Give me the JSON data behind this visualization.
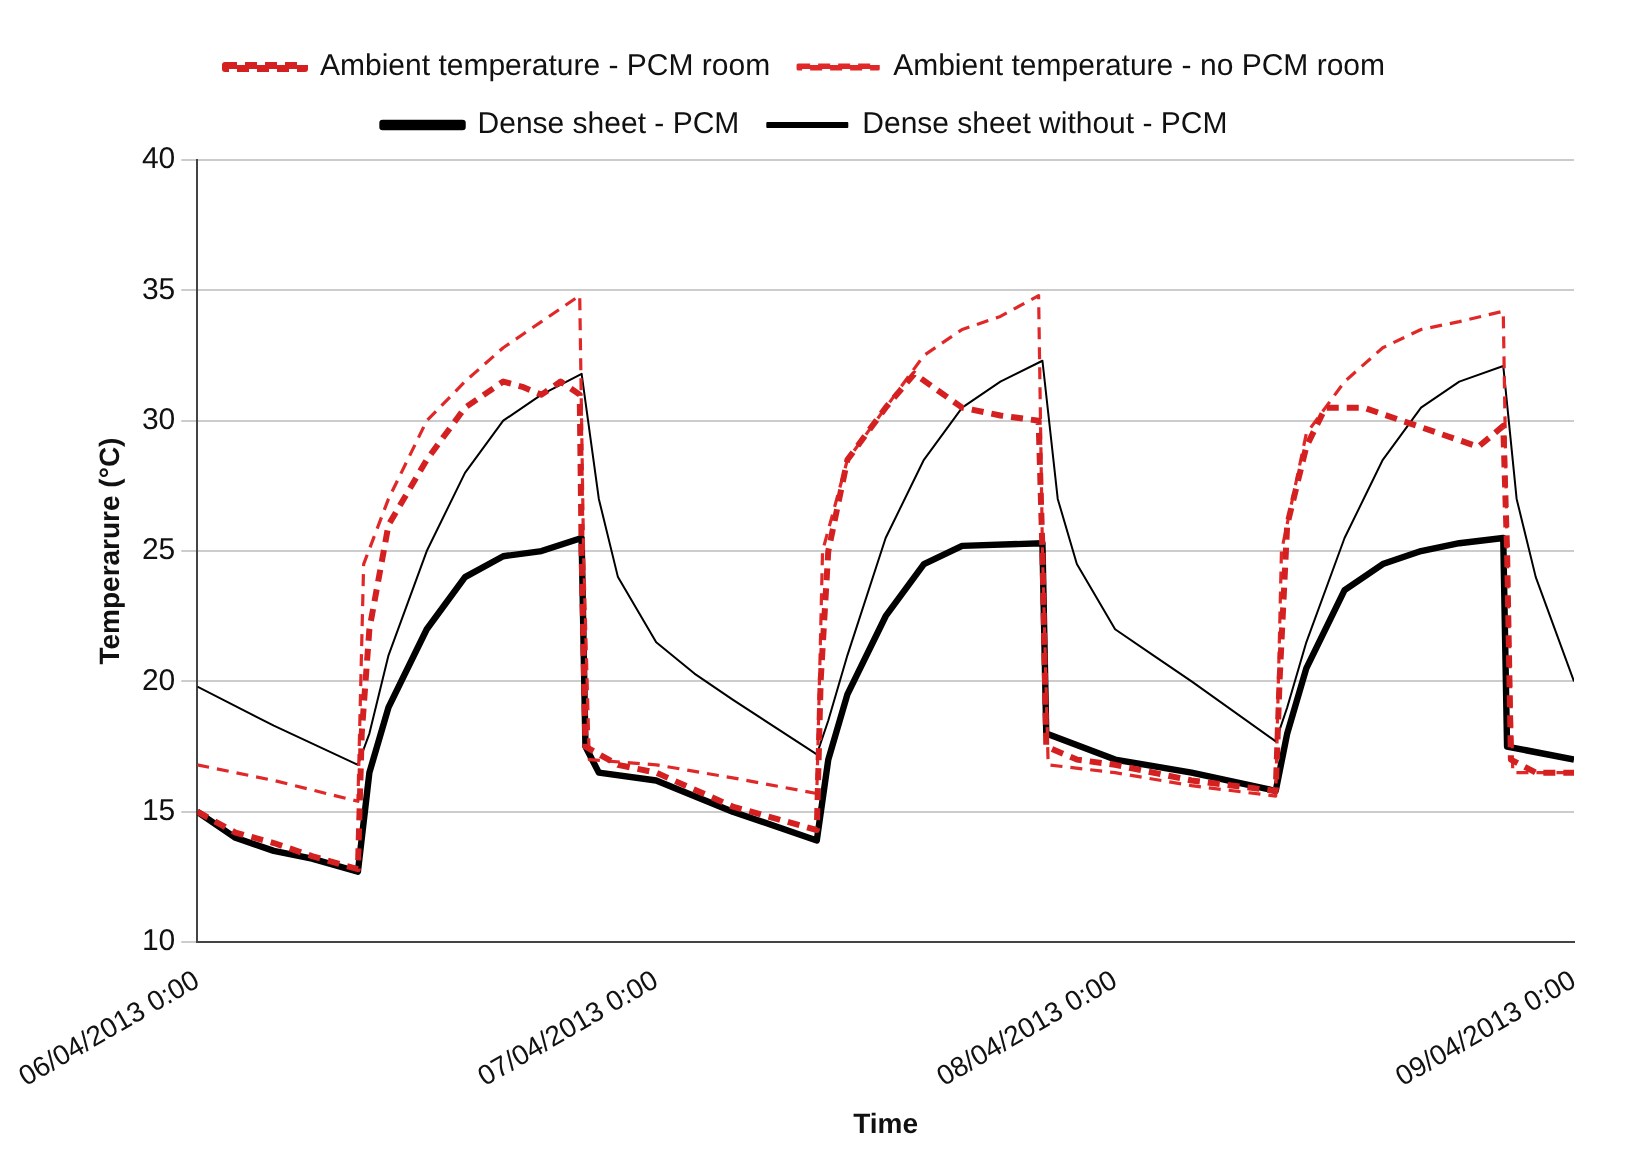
{
  "chart_data": {
    "type": "line",
    "xlabel": "Time",
    "ylabel": "Temperarure (°C)",
    "xlim": [
      "2013-04-06T00:00",
      "2013-04-09T00:00"
    ],
    "xticks": [
      {
        "value": "2013-04-06T00:00",
        "label": "06/04/2013 0:00"
      },
      {
        "value": "2013-04-07T00:00",
        "label": "07/04/2013 0:00"
      },
      {
        "value": "2013-04-08T00:00",
        "label": "08/04/2013 0:00"
      },
      {
        "value": "2013-04-09T00:00",
        "label": "09/04/2013 0:00"
      }
    ],
    "ylim": [
      10,
      40
    ],
    "yticks": [
      10,
      15,
      20,
      25,
      30,
      35,
      40
    ],
    "grid": "y",
    "legend": "top",
    "marker": "none",
    "series": [
      {
        "name": "Ambient temperature - PCM room",
        "color": "#d42020",
        "line_style": "dashed",
        "x": [
          "2013-04-06T00:00",
          "2013-04-06T02:00",
          "2013-04-06T04:00",
          "2013-04-06T06:00",
          "2013-04-06T08:24",
          "2013-04-06T08:36",
          "2013-04-06T09:00",
          "2013-04-06T10:00",
          "2013-04-06T12:00",
          "2013-04-06T14:00",
          "2013-04-06T16:00",
          "2013-04-06T17:00",
          "2013-04-06T18:00",
          "2013-04-06T19:00",
          "2013-04-06T20:00",
          "2013-04-06T20:06",
          "2013-04-06T20:18",
          "2013-04-06T22:00",
          "2013-04-07T00:00",
          "2013-04-07T04:00",
          "2013-04-07T08:24",
          "2013-04-07T08:36",
          "2013-04-07T09:00",
          "2013-04-07T10:00",
          "2013-04-07T12:00",
          "2013-04-07T13:30",
          "2013-04-07T16:00",
          "2013-04-07T18:00",
          "2013-04-07T20:00",
          "2013-04-07T20:12",
          "2013-04-07T20:24",
          "2013-04-07T22:00",
          "2013-04-08T00:00",
          "2013-04-08T04:00",
          "2013-04-08T08:24",
          "2013-04-08T08:36",
          "2013-04-08T09:00",
          "2013-04-08T10:00",
          "2013-04-08T11:00",
          "2013-04-08T13:00",
          "2013-04-08T15:00",
          "2013-04-08T17:00",
          "2013-04-08T19:00",
          "2013-04-08T20:18",
          "2013-04-08T20:30",
          "2013-04-08T20:42",
          "2013-04-08T22:00",
          "2013-04-09T00:00"
        ],
        "values": [
          15,
          14.2,
          13.8,
          13.3,
          12.8,
          18,
          22,
          26,
          28.5,
          30.5,
          31.5,
          31.3,
          31,
          31.5,
          31,
          25,
          17.5,
          16.8,
          16.5,
          15.2,
          14.3,
          20,
          25,
          28.5,
          30.5,
          31.8,
          30.5,
          30.2,
          30,
          25,
          17.5,
          17,
          16.8,
          16.2,
          15.8,
          20,
          26,
          29,
          30.5,
          30.5,
          30,
          29.5,
          29,
          29.8,
          25,
          17,
          16.5,
          16.5
        ]
      },
      {
        "name": "Ambient temperature - no PCM room",
        "color": "#e02828",
        "line_style": "dashed",
        "x": [
          "2013-04-06T00:00",
          "2013-04-06T04:00",
          "2013-04-06T08:24",
          "2013-04-06T08:42",
          "2013-04-06T10:00",
          "2013-04-06T12:00",
          "2013-04-06T14:00",
          "2013-04-06T16:00",
          "2013-04-06T18:00",
          "2013-04-06T20:00",
          "2013-04-06T20:12",
          "2013-04-06T20:30",
          "2013-04-07T00:00",
          "2013-04-07T04:00",
          "2013-04-07T08:24",
          "2013-04-07T08:42",
          "2013-04-07T10:00",
          "2013-04-07T12:00",
          "2013-04-07T14:00",
          "2013-04-07T16:00",
          "2013-04-07T18:00",
          "2013-04-07T20:00",
          "2013-04-07T20:12",
          "2013-04-07T20:30",
          "2013-04-08T00:00",
          "2013-04-08T04:00",
          "2013-04-08T08:24",
          "2013-04-08T08:42",
          "2013-04-08T10:00",
          "2013-04-08T12:00",
          "2013-04-08T14:00",
          "2013-04-08T16:00",
          "2013-04-08T18:00",
          "2013-04-08T20:18",
          "2013-04-08T20:30",
          "2013-04-08T20:48",
          "2013-04-09T00:00"
        ],
        "values": [
          16.8,
          16.2,
          15.4,
          24.5,
          27,
          30,
          31.5,
          32.8,
          33.8,
          34.8,
          25,
          17,
          16.8,
          16.3,
          15.7,
          25,
          28.5,
          30.5,
          32.5,
          33.5,
          34,
          34.8,
          25,
          16.8,
          16.5,
          16,
          15.6,
          25,
          29.5,
          31.5,
          32.8,
          33.5,
          33.8,
          34.2,
          25,
          16.5,
          16.5
        ]
      },
      {
        "name": "Dense sheet - PCM",
        "color": "#000000",
        "line_style": "solid",
        "x": [
          "2013-04-06T00:00",
          "2013-04-06T02:00",
          "2013-04-06T04:00",
          "2013-04-06T06:00",
          "2013-04-06T08:24",
          "2013-04-06T09:00",
          "2013-04-06T10:00",
          "2013-04-06T12:00",
          "2013-04-06T14:00",
          "2013-04-06T16:00",
          "2013-04-06T18:00",
          "2013-04-06T20:06",
          "2013-04-06T20:18",
          "2013-04-06T21:00",
          "2013-04-07T00:00",
          "2013-04-07T04:00",
          "2013-04-07T08:24",
          "2013-04-07T09:00",
          "2013-04-07T10:00",
          "2013-04-07T12:00",
          "2013-04-07T14:00",
          "2013-04-07T16:00",
          "2013-04-07T20:12",
          "2013-04-07T20:24",
          "2013-04-08T00:00",
          "2013-04-08T04:00",
          "2013-04-08T08:24",
          "2013-04-08T09:00",
          "2013-04-08T10:00",
          "2013-04-08T12:00",
          "2013-04-08T14:00",
          "2013-04-08T16:00",
          "2013-04-08T18:00",
          "2013-04-08T20:18",
          "2013-04-08T20:30",
          "2013-04-09T00:00"
        ],
        "values": [
          15,
          14,
          13.5,
          13.2,
          12.7,
          16.5,
          19,
          22,
          24,
          24.8,
          25,
          25.5,
          17.5,
          16.5,
          16.2,
          15,
          13.9,
          17,
          19.5,
          22.5,
          24.5,
          25.2,
          25.3,
          18,
          17,
          16.5,
          15.8,
          18,
          20.5,
          23.5,
          24.5,
          25,
          25.3,
          25.5,
          17.5,
          17
        ]
      },
      {
        "name": "Dense sheet without - PCM",
        "color": "#000000",
        "line_style": "solid",
        "x": [
          "2013-04-06T00:00",
          "2013-04-06T04:00",
          "2013-04-06T08:24",
          "2013-04-06T09:00",
          "2013-04-06T10:00",
          "2013-04-06T12:00",
          "2013-04-06T14:00",
          "2013-04-06T16:00",
          "2013-04-06T18:00",
          "2013-04-06T20:06",
          "2013-04-06T21:00",
          "2013-04-06T22:00",
          "2013-04-07T00:00",
          "2013-04-07T02:00",
          "2013-04-07T04:00",
          "2013-04-07T08:24",
          "2013-04-07T09:00",
          "2013-04-07T10:00",
          "2013-04-07T12:00",
          "2013-04-07T14:00",
          "2013-04-07T16:00",
          "2013-04-07T18:00",
          "2013-04-07T20:12",
          "2013-04-07T21:00",
          "2013-04-07T22:00",
          "2013-04-08T00:00",
          "2013-04-08T02:00",
          "2013-04-08T04:00",
          "2013-04-08T08:24",
          "2013-04-08T09:00",
          "2013-04-08T10:00",
          "2013-04-08T12:00",
          "2013-04-08T14:00",
          "2013-04-08T16:00",
          "2013-04-08T18:00",
          "2013-04-08T20:18",
          "2013-04-08T21:00",
          "2013-04-08T22:00",
          "2013-04-09T00:00"
        ],
        "values": [
          19.8,
          18.3,
          16.8,
          18,
          21,
          25,
          28,
          30,
          31,
          31.8,
          27,
          24,
          21.5,
          20.3,
          19.3,
          17.2,
          18.5,
          21,
          25.5,
          28.5,
          30.5,
          31.5,
          32.3,
          27,
          24.5,
          22,
          21,
          20,
          17.7,
          19,
          21.5,
          25.5,
          28.5,
          30.5,
          31.5,
          32.1,
          27,
          24,
          20
        ]
      }
    ]
  }
}
